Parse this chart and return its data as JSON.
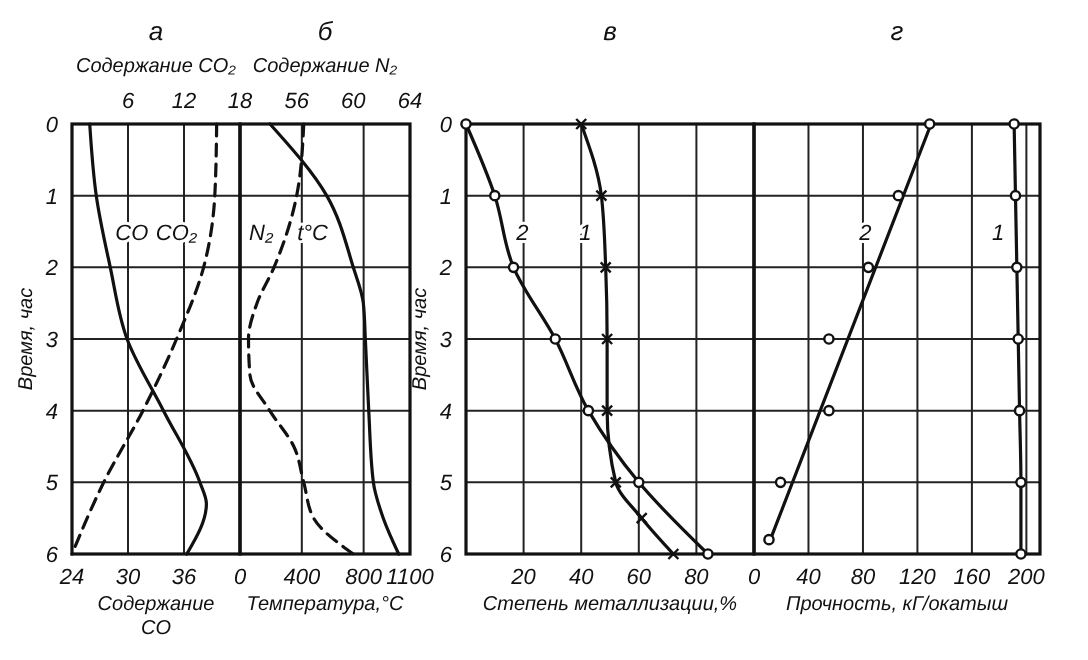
{
  "chart_data": [
    {
      "type": "line",
      "title": "а",
      "xlabel": "Содержание CO",
      "x2label": "Содержание CO₂",
      "ylabel": "Время, час",
      "xlim": [
        24,
        42
      ],
      "xticks": [
        24,
        30,
        36
      ],
      "x2lim": [
        0,
        18
      ],
      "x2ticks": [
        6,
        12,
        18
      ],
      "ylim": [
        6,
        0
      ],
      "yticks": [
        0,
        1,
        2,
        3,
        4,
        5,
        6
      ],
      "grid": true,
      "series": [
        {
          "name": "CO",
          "color": "#111111",
          "line_style": "solid",
          "x": [
            25.9,
            26.6,
            28.1,
            29.9,
            33.8,
            37.7,
            38.4,
            36.3
          ],
          "values": [
            0,
            1,
            2,
            3,
            4,
            5,
            5.3,
            6
          ]
        },
        {
          "name": "CO₂",
          "color": "#111111",
          "line_style": "dashed",
          "axis": "x2",
          "x": [
            15.5,
            15.3,
            14.1,
            11.2,
            7.6,
            3.4,
            0
          ],
          "values": [
            0,
            1,
            2,
            3,
            4,
            5,
            6
          ]
        }
      ]
    },
    {
      "type": "line",
      "title": "б",
      "xlabel": "Температура,°C",
      "x2label": "Содержание N₂",
      "xlim": [
        0,
        1100
      ],
      "xticks": [
        0,
        400,
        800,
        1100
      ],
      "x2lim": [
        52,
        64
      ],
      "x2ticks": [
        56,
        60,
        64
      ],
      "ylim": [
        6,
        0
      ],
      "yticks": [
        0,
        1,
        2,
        3,
        4,
        5,
        6
      ],
      "grid": true,
      "tick_labels": "x",
      "series": [
        {
          "name": "N₂",
          "color": "#111111",
          "line_style": "dashed",
          "axis": "x2",
          "x": [
            56.5,
            56,
            54.4,
            53.2,
            52.6,
            52.7,
            54.1,
            55.8,
            56.5,
            57.2,
            60
          ],
          "values": [
            0,
            1,
            2,
            2.5,
            3,
            3.5,
            4,
            4.5,
            5,
            5.5,
            6
          ]
        },
        {
          "name": "t°C",
          "color": "#111111",
          "line_style": "solid",
          "x": [
            194,
            561,
            733,
            798,
            811,
            833,
            863,
            927,
            1027
          ],
          "values": [
            0,
            1,
            2,
            2.5,
            3,
            4,
            5,
            5.5,
            6
          ]
        }
      ]
    },
    {
      "type": "line",
      "title": "в",
      "xlabel": "Степень металлизации,%",
      "ylabel": "Время, час",
      "xlim": [
        0,
        100
      ],
      "xticks": [
        20,
        40,
        60,
        80
      ],
      "ylim": [
        6,
        0
      ],
      "yticks": [
        0,
        1,
        2,
        3,
        4,
        5,
        6
      ],
      "grid": true,
      "series": [
        {
          "name": "1",
          "color": "#111111",
          "marker": "cross",
          "x": [
            40,
            47,
            48.5,
            49,
            49,
            52,
            61,
            72
          ],
          "values": [
            0,
            1,
            2,
            3,
            4,
            5,
            5.5,
            6
          ]
        },
        {
          "name": "2",
          "color": "#111111",
          "marker": "circle",
          "x": [
            0,
            10,
            16.5,
            31,
            42.5,
            60,
            84
          ],
          "values": [
            0,
            1,
            2,
            3,
            4,
            5,
            6
          ]
        }
      ]
    },
    {
      "type": "line",
      "title": "г",
      "xlabel": "Прочность, кГ/окатыш",
      "xlim": [
        0,
        210
      ],
      "xticks": [
        0,
        40,
        80,
        120,
        160,
        200
      ],
      "ylim": [
        6,
        0
      ],
      "yticks": [
        0,
        1,
        2,
        3,
        4,
        5,
        6
      ],
      "grid": true,
      "tick_labels": "x",
      "series": [
        {
          "name": "1",
          "color": "#111111",
          "marker": "circle",
          "x": [
            191,
            192,
            193,
            194,
            195,
            196,
            196
          ],
          "values": [
            0,
            1,
            2,
            3,
            4,
            5,
            6
          ]
        },
        {
          "color": "#111111",
          "x": [
            130,
            12
          ],
          "values": [
            0,
            5.8
          ]
        },
        {
          "name": "2",
          "type": "scatter",
          "color": "#111111",
          "marker": "circle",
          "x": [
            129,
            106,
            84,
            55,
            55,
            19.5,
            11
          ],
          "values": [
            0,
            1,
            2,
            3,
            4,
            5,
            5.8
          ]
        }
      ]
    }
  ]
}
